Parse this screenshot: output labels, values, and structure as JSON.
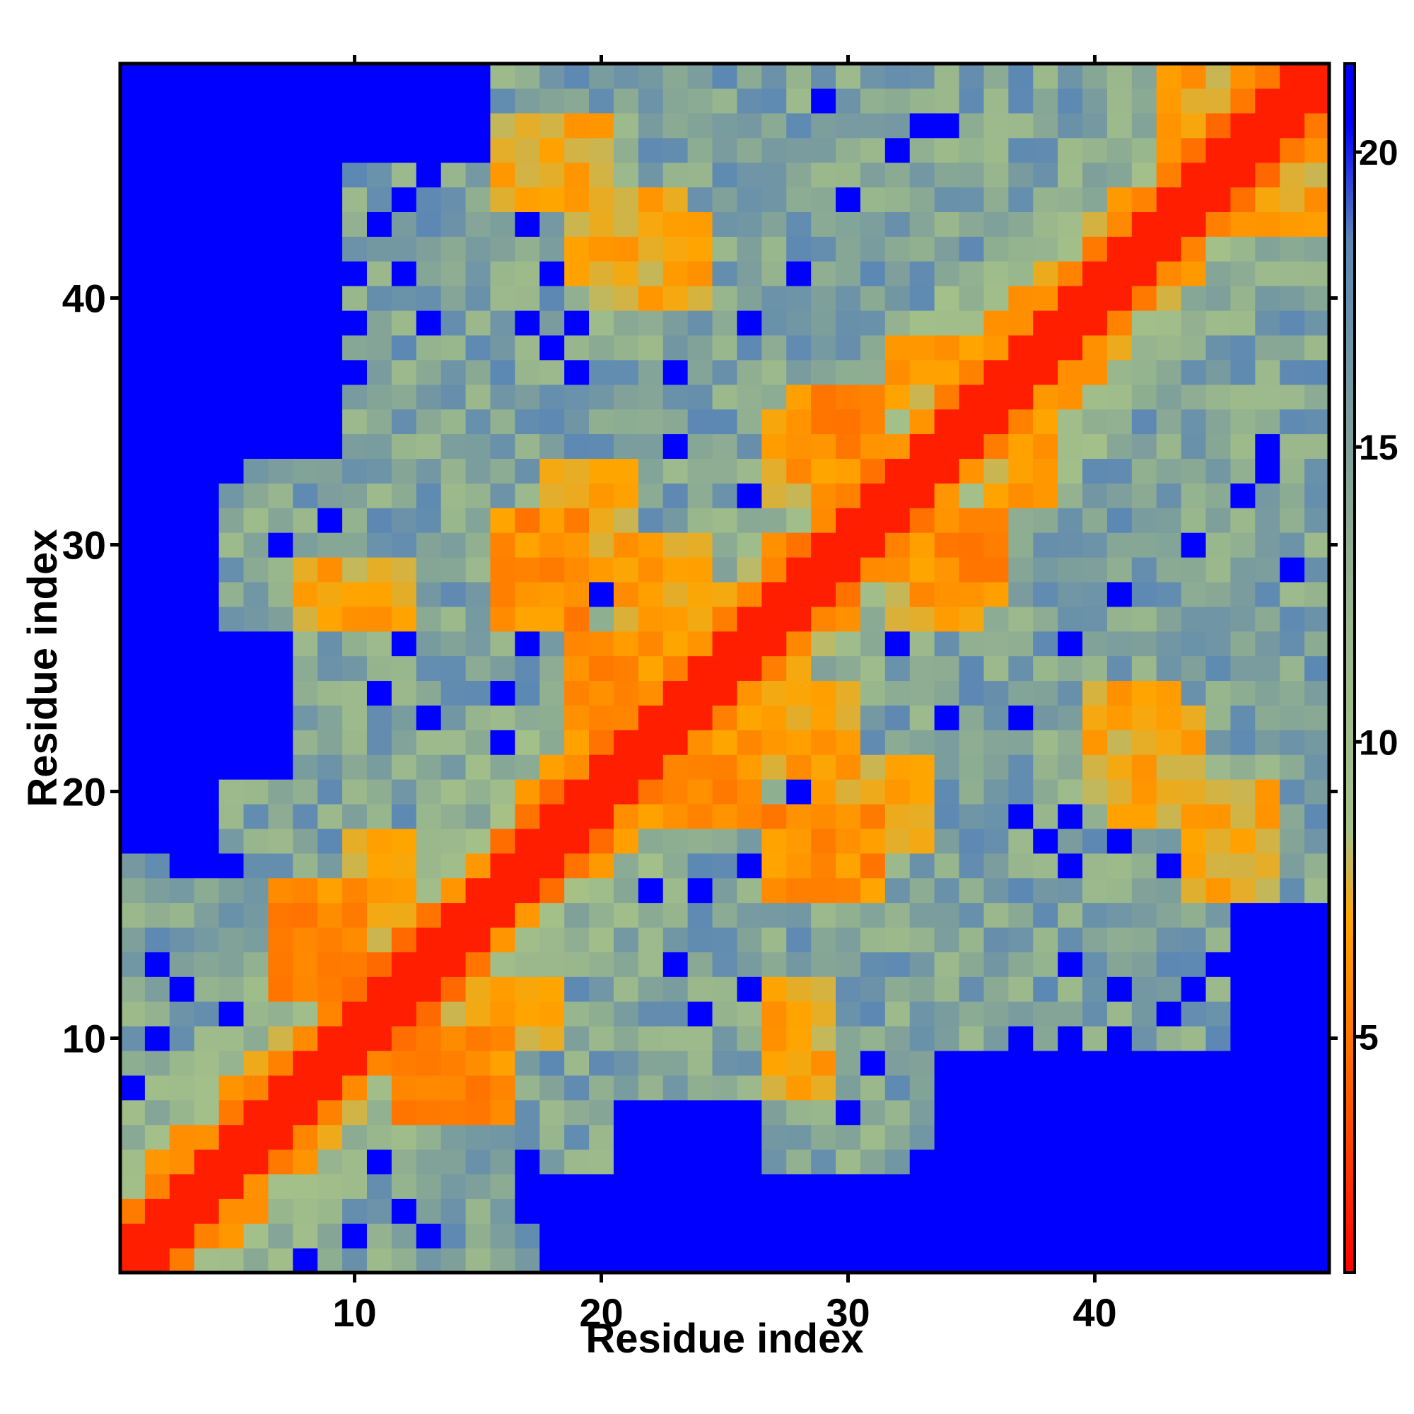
{
  "chart_data": {
    "type": "heatmap",
    "title": "",
    "xlabel": "Residue index",
    "ylabel": "Residue index",
    "x_range": [
      1,
      49
    ],
    "y_range": [
      1,
      49
    ],
    "x_ticks": [
      10,
      20,
      30,
      40
    ],
    "y_ticks": [
      10,
      20,
      30,
      40
    ],
    "grid": false,
    "colorbar": {
      "position": "right",
      "range": [
        1,
        21.5
      ],
      "ticks": [
        5,
        10,
        15,
        20
      ],
      "stops": [
        {
          "value": 1,
          "color": "#ff0000"
        },
        {
          "value": 4,
          "color": "#ff5a00"
        },
        {
          "value": 7,
          "color": "#ffa500"
        },
        {
          "value": 8.5,
          "color": "#a5c189"
        },
        {
          "value": 12,
          "color": "#9ab88c"
        },
        {
          "value": 15,
          "color": "#7fa09a"
        },
        {
          "value": 18.5,
          "color": "#5b87b5"
        },
        {
          "value": 20.5,
          "color": "#0000ff"
        }
      ]
    },
    "symmetric": true,
    "matrix_rule": {
      "description": "Pairwise residue distance map; values estimated from color. Diagonal band (|i-j|<=1) ~2, |i-j|=2 ~4-6, helical i/i+3-4 contacts ~6-7, distant blocks ~21 (saturated blue).",
      "diagonal_value": 2,
      "far_value": 21
    },
    "contact_patches": [
      {
        "i": [
          7,
          10
        ],
        "j": [
          12,
          16
        ],
        "value": 5
      },
      {
        "i": [
          10,
          12
        ],
        "j": [
          14,
          18
        ],
        "value": 6
      },
      {
        "i": [
          16,
          19
        ],
        "j": [
          27,
          31
        ],
        "value": 5
      },
      {
        "i": [
          18,
          21
        ],
        "j": [
          29,
          33
        ],
        "value": 6
      },
      {
        "i": [
          23,
          26
        ],
        "j": [
          19,
          23
        ],
        "value": 5
      },
      {
        "i": [
          21,
          24
        ],
        "j": [
          27,
          30
        ],
        "value": 6
      },
      {
        "i": [
          27,
          30
        ],
        "j": [
          32,
          35
        ],
        "value": 6
      },
      {
        "i": [
          33,
          36
        ],
        "j": [
          28,
          31
        ],
        "value": 5
      },
      {
        "i": [
          36,
          38
        ],
        "j": [
          32,
          35
        ],
        "value": 6
      },
      {
        "i": [
          41,
          44
        ],
        "j": [
          19,
          23
        ],
        "value": 6
      },
      {
        "i": [
          44,
          47
        ],
        "j": [
          16,
          20
        ],
        "value": 6
      },
      {
        "i": [
          46,
          49
        ],
        "j": [
          43,
          46
        ],
        "value": 6
      },
      {
        "i": [
          10,
          14
        ],
        "j": [
          9,
          12
        ],
        "value": 6
      },
      {
        "i": [
          21,
          24
        ],
        "j": [
          40,
          43
        ],
        "value": 6
      },
      {
        "i": [
          40,
          43
        ],
        "j": [
          20,
          24
        ],
        "value": 7
      },
      {
        "i": [
          27,
          29
        ],
        "j": [
          8,
          12
        ],
        "value": 6
      }
    ],
    "far_regions": [
      {
        "i": [
          1,
          4
        ],
        "j": [
          18,
          49
        ],
        "value": 21
      },
      {
        "i": [
          1,
          9
        ],
        "j": [
          34,
          49
        ],
        "value": 21
      },
      {
        "i": [
          18,
          49
        ],
        "j": [
          1,
          4
        ],
        "value": 21
      },
      {
        "i": [
          34,
          49
        ],
        "j": [
          1,
          9
        ],
        "value": 21
      },
      {
        "i": [
          1,
          7
        ],
        "j": [
          21,
          26
        ],
        "value": 21
      },
      {
        "i": [
          21,
          26
        ],
        "j": [
          1,
          7
        ],
        "value": 21
      },
      {
        "i": [
          46,
          49
        ],
        "j": [
          1,
          15
        ],
        "value": 21
      },
      {
        "i": [
          1,
          15
        ],
        "j": [
          46,
          49
        ],
        "value": 21
      }
    ]
  }
}
